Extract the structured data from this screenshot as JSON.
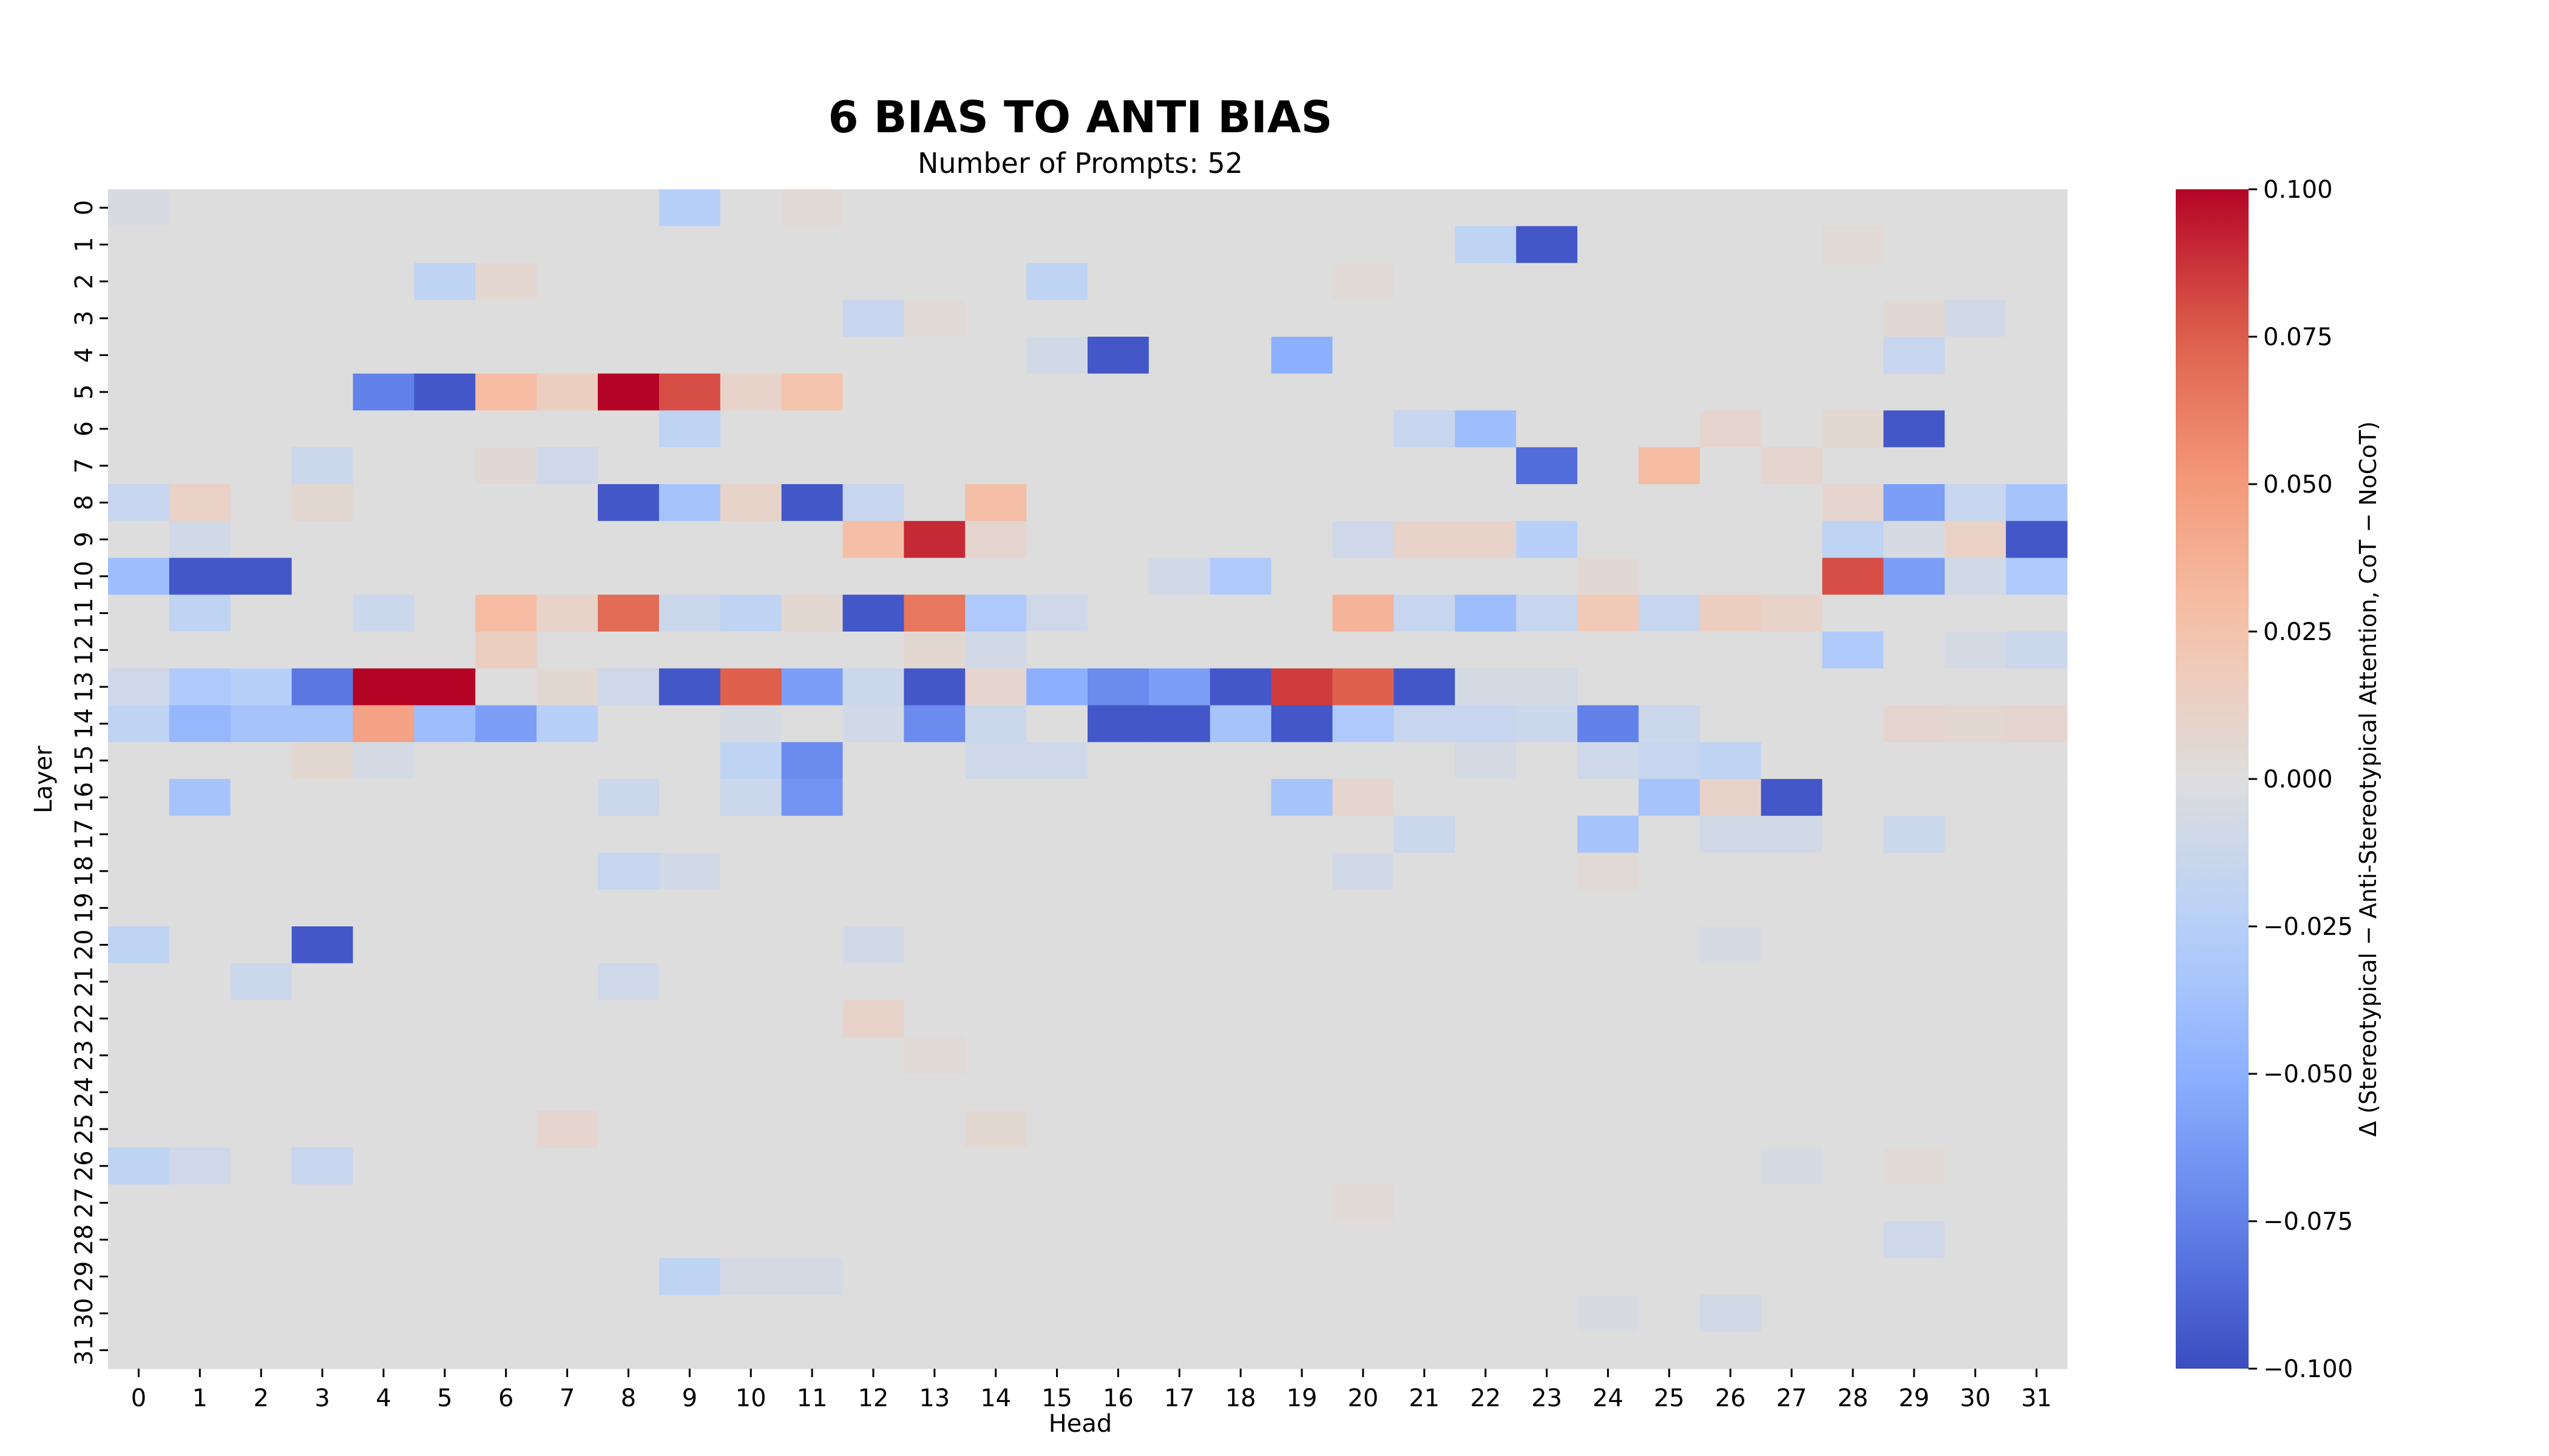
{
  "chart_data": {
    "type": "heatmap",
    "title": "6 BIAS TO ANTI BIAS",
    "subtitle": "Number of Prompts: 52",
    "xlabel": "Head",
    "ylabel": "Layer",
    "colorbar_label": "Δ (Stereotypical − Anti-Stereotypical Attention, CoT − NoCoT)",
    "colormap": "coolwarm",
    "vmin": -0.1,
    "vmax": 0.1,
    "colorbar_ticks": [
      "0.100",
      "0.075",
      "0.050",
      "0.025",
      "0.000",
      "−0.025",
      "−0.050",
      "−0.075",
      "−0.100"
    ],
    "x_categories": [
      "0",
      "1",
      "2",
      "3",
      "4",
      "5",
      "6",
      "7",
      "8",
      "9",
      "10",
      "11",
      "12",
      "13",
      "14",
      "15",
      "16",
      "17",
      "18",
      "19",
      "20",
      "21",
      "22",
      "23",
      "24",
      "25",
      "26",
      "27",
      "28",
      "29",
      "30",
      "31"
    ],
    "y_categories": [
      "0",
      "1",
      "2",
      "3",
      "4",
      "5",
      "6",
      "7",
      "8",
      "9",
      "10",
      "11",
      "12",
      "13",
      "14",
      "15",
      "16",
      "17",
      "18",
      "19",
      "20",
      "21",
      "22",
      "23",
      "24",
      "25",
      "26",
      "27",
      "28",
      "29",
      "30",
      "31"
    ],
    "grid": false,
    "legend": "colorbar-right",
    "cells": [
      [
        0,
        9,
        -0.025
      ],
      [
        0,
        0,
        -0.004
      ],
      [
        0,
        11,
        0.004
      ],
      [
        1,
        22,
        -0.02
      ],
      [
        1,
        23,
        -0.095
      ],
      [
        1,
        28,
        0.004
      ],
      [
        2,
        5,
        -0.02
      ],
      [
        2,
        6,
        0.007
      ],
      [
        2,
        15,
        -0.02
      ],
      [
        2,
        20,
        0.004
      ],
      [
        3,
        12,
        -0.015
      ],
      [
        3,
        13,
        0.004
      ],
      [
        3,
        29,
        0.005
      ],
      [
        3,
        30,
        -0.008
      ],
      [
        4,
        16,
        -0.095
      ],
      [
        4,
        15,
        -0.008
      ],
      [
        4,
        19,
        -0.05
      ],
      [
        4,
        29,
        -0.015
      ],
      [
        5,
        4,
        -0.075
      ],
      [
        5,
        5,
        -0.095
      ],
      [
        5,
        6,
        0.03
      ],
      [
        5,
        7,
        0.015
      ],
      [
        5,
        8,
        0.1
      ],
      [
        5,
        9,
        0.08
      ],
      [
        5,
        10,
        0.01
      ],
      [
        5,
        11,
        0.025
      ],
      [
        6,
        9,
        -0.02
      ],
      [
        6,
        21,
        -0.015
      ],
      [
        6,
        22,
        -0.04
      ],
      [
        6,
        26,
        0.008
      ],
      [
        6,
        28,
        0.006
      ],
      [
        6,
        29,
        -0.095
      ],
      [
        7,
        3,
        -0.012
      ],
      [
        7,
        7,
        -0.01
      ],
      [
        7,
        6,
        0.005
      ],
      [
        7,
        23,
        -0.085
      ],
      [
        7,
        25,
        0.03
      ],
      [
        7,
        27,
        0.008
      ],
      [
        8,
        0,
        -0.015
      ],
      [
        8,
        1,
        0.012
      ],
      [
        8,
        3,
        0.006
      ],
      [
        8,
        8,
        -0.095
      ],
      [
        8,
        9,
        -0.035
      ],
      [
        8,
        10,
        0.01
      ],
      [
        8,
        11,
        -0.095
      ],
      [
        8,
        12,
        -0.015
      ],
      [
        8,
        14,
        0.028
      ],
      [
        8,
        28,
        0.008
      ],
      [
        8,
        29,
        -0.06
      ],
      [
        8,
        30,
        -0.015
      ],
      [
        8,
        31,
        -0.035
      ],
      [
        9,
        1,
        -0.008
      ],
      [
        9,
        12,
        0.028
      ],
      [
        9,
        13,
        0.09
      ],
      [
        9,
        14,
        0.008
      ],
      [
        9,
        20,
        -0.01
      ],
      [
        9,
        21,
        0.01
      ],
      [
        9,
        22,
        0.01
      ],
      [
        9,
        23,
        -0.025
      ],
      [
        9,
        28,
        -0.02
      ],
      [
        9,
        29,
        -0.005
      ],
      [
        9,
        30,
        0.012
      ],
      [
        9,
        31,
        -0.095
      ],
      [
        10,
        0,
        -0.04
      ],
      [
        10,
        1,
        -0.095
      ],
      [
        10,
        2,
        -0.095
      ],
      [
        10,
        17,
        -0.008
      ],
      [
        10,
        18,
        -0.03
      ],
      [
        10,
        24,
        0.005
      ],
      [
        10,
        28,
        0.08
      ],
      [
        10,
        29,
        -0.06
      ],
      [
        10,
        30,
        -0.008
      ],
      [
        10,
        31,
        -0.03
      ],
      [
        11,
        1,
        -0.02
      ],
      [
        11,
        4,
        -0.012
      ],
      [
        11,
        6,
        0.03
      ],
      [
        11,
        7,
        0.01
      ],
      [
        11,
        8,
        0.07
      ],
      [
        11,
        9,
        -0.012
      ],
      [
        11,
        10,
        -0.02
      ],
      [
        11,
        11,
        0.006
      ],
      [
        11,
        12,
        -0.095
      ],
      [
        11,
        13,
        0.065
      ],
      [
        11,
        14,
        -0.03
      ],
      [
        11,
        15,
        -0.01
      ],
      [
        11,
        20,
        0.035
      ],
      [
        11,
        21,
        -0.015
      ],
      [
        11,
        22,
        -0.04
      ],
      [
        11,
        23,
        -0.015
      ],
      [
        11,
        24,
        0.02
      ],
      [
        11,
        25,
        -0.015
      ],
      [
        11,
        26,
        0.015
      ],
      [
        11,
        27,
        0.01
      ],
      [
        12,
        6,
        0.015
      ],
      [
        12,
        13,
        0.006
      ],
      [
        12,
        14,
        -0.008
      ],
      [
        12,
        28,
        -0.03
      ],
      [
        12,
        30,
        -0.006
      ],
      [
        12,
        31,
        -0.012
      ],
      [
        13,
        0,
        -0.01
      ],
      [
        13,
        1,
        -0.03
      ],
      [
        13,
        2,
        -0.025
      ],
      [
        13,
        3,
        -0.08
      ],
      [
        13,
        4,
        0.1
      ],
      [
        13,
        5,
        0.1
      ],
      [
        13,
        7,
        0.006
      ],
      [
        13,
        8,
        -0.01
      ],
      [
        13,
        9,
        -0.095
      ],
      [
        13,
        10,
        0.075
      ],
      [
        13,
        11,
        -0.06
      ],
      [
        13,
        12,
        -0.012
      ],
      [
        13,
        13,
        -0.095
      ],
      [
        13,
        14,
        0.008
      ],
      [
        13,
        15,
        -0.05
      ],
      [
        13,
        16,
        -0.07
      ],
      [
        13,
        17,
        -0.06
      ],
      [
        13,
        18,
        -0.095
      ],
      [
        13,
        19,
        0.085
      ],
      [
        13,
        20,
        0.075
      ],
      [
        13,
        21,
        -0.095
      ],
      [
        13,
        22,
        -0.006
      ],
      [
        13,
        23,
        -0.006
      ],
      [
        14,
        0,
        -0.02
      ],
      [
        14,
        1,
        -0.045
      ],
      [
        14,
        2,
        -0.035
      ],
      [
        14,
        3,
        -0.035
      ],
      [
        14,
        4,
        0.045
      ],
      [
        14,
        5,
        -0.04
      ],
      [
        14,
        6,
        -0.06
      ],
      [
        14,
        7,
        -0.025
      ],
      [
        14,
        10,
        -0.005
      ],
      [
        14,
        12,
        -0.008
      ],
      [
        14,
        13,
        -0.07
      ],
      [
        14,
        14,
        -0.012
      ],
      [
        14,
        16,
        -0.095
      ],
      [
        14,
        17,
        -0.095
      ],
      [
        14,
        18,
        -0.035
      ],
      [
        14,
        19,
        -0.095
      ],
      [
        14,
        20,
        -0.03
      ],
      [
        14,
        21,
        -0.015
      ],
      [
        14,
        22,
        -0.015
      ],
      [
        14,
        23,
        -0.012
      ],
      [
        14,
        24,
        -0.075
      ],
      [
        14,
        25,
        -0.012
      ],
      [
        14,
        29,
        0.008
      ],
      [
        14,
        30,
        0.006
      ],
      [
        14,
        31,
        0.008
      ],
      [
        15,
        3,
        0.006
      ],
      [
        15,
        4,
        -0.006
      ],
      [
        15,
        10,
        -0.02
      ],
      [
        15,
        11,
        -0.07
      ],
      [
        15,
        14,
        -0.01
      ],
      [
        15,
        15,
        -0.01
      ],
      [
        15,
        22,
        -0.006
      ],
      [
        15,
        24,
        -0.01
      ],
      [
        15,
        25,
        -0.015
      ],
      [
        15,
        26,
        -0.02
      ],
      [
        16,
        1,
        -0.035
      ],
      [
        16,
        8,
        -0.012
      ],
      [
        16,
        10,
        -0.012
      ],
      [
        16,
        11,
        -0.065
      ],
      [
        16,
        19,
        -0.035
      ],
      [
        16,
        20,
        0.008
      ],
      [
        16,
        25,
        -0.035
      ],
      [
        16,
        26,
        0.01
      ],
      [
        16,
        27,
        -0.095
      ],
      [
        17,
        21,
        -0.012
      ],
      [
        17,
        24,
        -0.035
      ],
      [
        17,
        26,
        -0.008
      ],
      [
        17,
        27,
        -0.008
      ],
      [
        17,
        29,
        -0.012
      ],
      [
        18,
        8,
        -0.015
      ],
      [
        18,
        9,
        -0.008
      ],
      [
        18,
        20,
        -0.008
      ],
      [
        18,
        24,
        0.004
      ],
      [
        20,
        0,
        -0.02
      ],
      [
        20,
        3,
        -0.095
      ],
      [
        20,
        12,
        -0.008
      ],
      [
        20,
        26,
        -0.005
      ],
      [
        21,
        2,
        -0.012
      ],
      [
        21,
        8,
        -0.01
      ],
      [
        22,
        12,
        0.01
      ],
      [
        23,
        13,
        0.004
      ],
      [
        25,
        7,
        0.008
      ],
      [
        25,
        14,
        0.006
      ],
      [
        26,
        0,
        -0.02
      ],
      [
        26,
        1,
        -0.01
      ],
      [
        26,
        3,
        -0.015
      ],
      [
        26,
        27,
        -0.005
      ],
      [
        26,
        29,
        0.004
      ],
      [
        27,
        20,
        0.004
      ],
      [
        28,
        29,
        -0.01
      ],
      [
        29,
        9,
        -0.02
      ],
      [
        29,
        10,
        -0.006
      ],
      [
        29,
        11,
        -0.006
      ],
      [
        30,
        26,
        -0.008
      ],
      [
        30,
        24,
        -0.004
      ]
    ]
  }
}
